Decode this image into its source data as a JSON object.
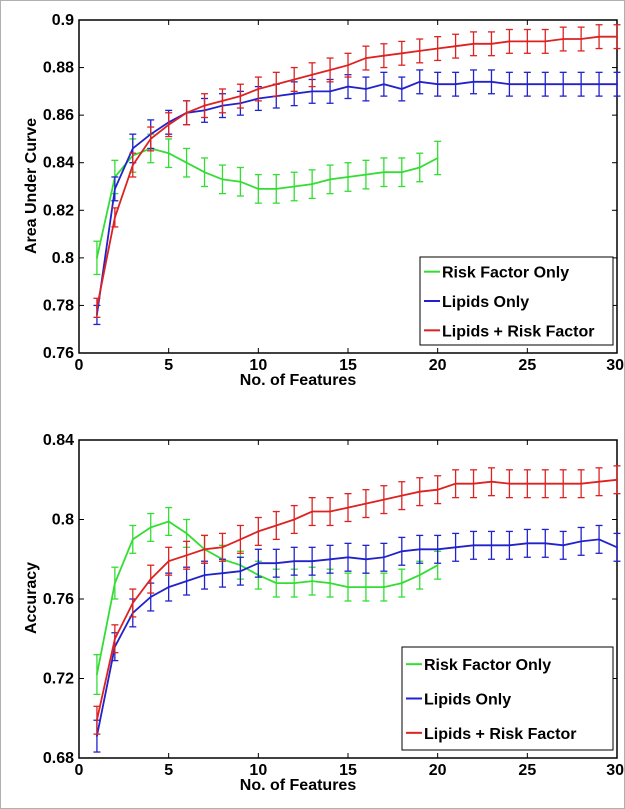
{
  "chart_data": [
    {
      "type": "line",
      "xlabel": "No. of Features",
      "ylabel": "Area Under Curve",
      "xlim": [
        0,
        30
      ],
      "ylim": [
        0.76,
        0.9
      ],
      "xticks": [
        0,
        5,
        10,
        15,
        20,
        25,
        30
      ],
      "yticks": [
        0.76,
        0.78,
        0.8,
        0.82,
        0.84,
        0.86,
        0.88,
        0.9
      ],
      "xtick_labels": [
        "0",
        "5",
        "10",
        "15",
        "20",
        "25",
        "30"
      ],
      "ytick_labels": [
        "0.76",
        "0.78",
        "0.8",
        "0.82",
        "0.84",
        "0.86",
        "0.88",
        "0.9"
      ],
      "grid": false,
      "legend": "bottom-right",
      "series": [
        {
          "name": "Risk Factor Only",
          "color": "#33dd33",
          "x": [
            1,
            2,
            3,
            4,
            5,
            6,
            7,
            8,
            9,
            10,
            11,
            12,
            13,
            14,
            15,
            16,
            17,
            18,
            19,
            20
          ],
          "values": [
            0.8,
            0.834,
            0.843,
            0.846,
            0.844,
            0.84,
            0.836,
            0.833,
            0.832,
            0.829,
            0.829,
            0.83,
            0.831,
            0.833,
            0.834,
            0.835,
            0.836,
            0.836,
            0.838,
            0.842
          ],
          "error": [
            0.007,
            0.007,
            0.007,
            0.006,
            0.006,
            0.006,
            0.006,
            0.006,
            0.006,
            0.006,
            0.006,
            0.006,
            0.006,
            0.006,
            0.006,
            0.006,
            0.006,
            0.006,
            0.006,
            0.007
          ]
        },
        {
          "name": "Lipids Only",
          "color": "#2222cc",
          "x": [
            1,
            2,
            3,
            4,
            5,
            6,
            7,
            8,
            9,
            10,
            11,
            12,
            13,
            14,
            15,
            16,
            17,
            18,
            19,
            20,
            21,
            22,
            23,
            24,
            25,
            26,
            27,
            28,
            29,
            30
          ],
          "values": [
            0.776,
            0.829,
            0.846,
            0.852,
            0.857,
            0.861,
            0.862,
            0.864,
            0.865,
            0.867,
            0.868,
            0.869,
            0.87,
            0.87,
            0.872,
            0.871,
            0.873,
            0.871,
            0.874,
            0.873,
            0.873,
            0.874,
            0.874,
            0.873,
            0.873,
            0.873,
            0.873,
            0.873,
            0.873,
            0.873
          ],
          "error": [
            0.004,
            0.005,
            0.006,
            0.006,
            0.005,
            0.005,
            0.005,
            0.005,
            0.005,
            0.005,
            0.005,
            0.005,
            0.005,
            0.005,
            0.005,
            0.005,
            0.005,
            0.005,
            0.005,
            0.005,
            0.005,
            0.005,
            0.005,
            0.005,
            0.005,
            0.005,
            0.005,
            0.005,
            0.005,
            0.005
          ]
        },
        {
          "name": "Lipids + Risk Factor",
          "color": "#dd2222",
          "x": [
            1,
            2,
            3,
            4,
            5,
            6,
            7,
            8,
            9,
            10,
            11,
            12,
            13,
            14,
            15,
            16,
            17,
            18,
            19,
            20,
            21,
            22,
            23,
            24,
            25,
            26,
            27,
            28,
            29,
            30
          ],
          "values": [
            0.779,
            0.817,
            0.839,
            0.85,
            0.856,
            0.861,
            0.864,
            0.866,
            0.868,
            0.871,
            0.873,
            0.875,
            0.877,
            0.879,
            0.881,
            0.884,
            0.885,
            0.886,
            0.887,
            0.888,
            0.889,
            0.89,
            0.89,
            0.891,
            0.891,
            0.891,
            0.892,
            0.892,
            0.893,
            0.893
          ],
          "error": [
            0.004,
            0.004,
            0.005,
            0.005,
            0.005,
            0.005,
            0.005,
            0.005,
            0.005,
            0.005,
            0.005,
            0.005,
            0.005,
            0.005,
            0.005,
            0.005,
            0.005,
            0.005,
            0.005,
            0.005,
            0.005,
            0.005,
            0.005,
            0.005,
            0.005,
            0.005,
            0.005,
            0.005,
            0.005,
            0.005
          ]
        }
      ]
    },
    {
      "type": "line",
      "xlabel": "No. of Features",
      "ylabel": "Accuracy",
      "xlim": [
        0,
        30
      ],
      "ylim": [
        0.68,
        0.84
      ],
      "xticks": [
        0,
        5,
        10,
        15,
        20,
        25,
        30
      ],
      "yticks": [
        0.68,
        0.72,
        0.76,
        0.8,
        0.84
      ],
      "xtick_labels": [
        "0",
        "5",
        "10",
        "15",
        "20",
        "25",
        "30"
      ],
      "ytick_labels": [
        "0.68",
        "0.72",
        "0.76",
        "0.8",
        "0.84"
      ],
      "grid": false,
      "legend": "bottom-right",
      "series": [
        {
          "name": "Risk Factor Only",
          "color": "#33dd33",
          "x": [
            1,
            2,
            3,
            4,
            5,
            6,
            7,
            8,
            9,
            10,
            11,
            12,
            13,
            14,
            15,
            16,
            17,
            18,
            19,
            20
          ],
          "values": [
            0.722,
            0.768,
            0.79,
            0.796,
            0.799,
            0.793,
            0.785,
            0.78,
            0.777,
            0.772,
            0.768,
            0.768,
            0.769,
            0.768,
            0.766,
            0.766,
            0.766,
            0.768,
            0.772,
            0.777
          ],
          "error": [
            0.01,
            0.008,
            0.007,
            0.007,
            0.007,
            0.007,
            0.007,
            0.007,
            0.007,
            0.007,
            0.007,
            0.007,
            0.007,
            0.007,
            0.007,
            0.007,
            0.007,
            0.007,
            0.007,
            0.007
          ]
        },
        {
          "name": "Lipids Only",
          "color": "#2222cc",
          "x": [
            1,
            2,
            3,
            4,
            5,
            6,
            7,
            8,
            9,
            10,
            11,
            12,
            13,
            14,
            15,
            16,
            17,
            18,
            19,
            20,
            21,
            22,
            23,
            24,
            25,
            26,
            27,
            28,
            29,
            30
          ],
          "values": [
            0.691,
            0.736,
            0.753,
            0.761,
            0.766,
            0.769,
            0.772,
            0.773,
            0.774,
            0.778,
            0.778,
            0.779,
            0.779,
            0.78,
            0.781,
            0.78,
            0.781,
            0.784,
            0.785,
            0.785,
            0.786,
            0.787,
            0.787,
            0.787,
            0.788,
            0.788,
            0.787,
            0.789,
            0.79,
            0.786
          ],
          "error": [
            0.008,
            0.007,
            0.007,
            0.007,
            0.007,
            0.007,
            0.007,
            0.007,
            0.007,
            0.007,
            0.007,
            0.007,
            0.007,
            0.007,
            0.007,
            0.007,
            0.007,
            0.007,
            0.007,
            0.007,
            0.007,
            0.007,
            0.007,
            0.007,
            0.007,
            0.007,
            0.007,
            0.007,
            0.007,
            0.007
          ]
        },
        {
          "name": "Lipids + Risk Factor",
          "color": "#dd2222",
          "x": [
            1,
            2,
            3,
            4,
            5,
            6,
            7,
            8,
            9,
            10,
            11,
            12,
            13,
            14,
            15,
            16,
            17,
            18,
            19,
            20,
            21,
            22,
            23,
            24,
            25,
            26,
            27,
            28,
            29,
            30
          ],
          "values": [
            0.699,
            0.74,
            0.758,
            0.77,
            0.779,
            0.782,
            0.785,
            0.786,
            0.79,
            0.794,
            0.797,
            0.8,
            0.804,
            0.804,
            0.806,
            0.808,
            0.81,
            0.812,
            0.814,
            0.815,
            0.818,
            0.818,
            0.819,
            0.818,
            0.818,
            0.818,
            0.818,
            0.818,
            0.819,
            0.82
          ],
          "error": [
            0.007,
            0.007,
            0.007,
            0.007,
            0.007,
            0.007,
            0.007,
            0.007,
            0.007,
            0.007,
            0.007,
            0.007,
            0.007,
            0.007,
            0.007,
            0.007,
            0.007,
            0.007,
            0.007,
            0.007,
            0.007,
            0.007,
            0.007,
            0.007,
            0.007,
            0.007,
            0.007,
            0.007,
            0.007,
            0.007
          ]
        }
      ]
    }
  ]
}
